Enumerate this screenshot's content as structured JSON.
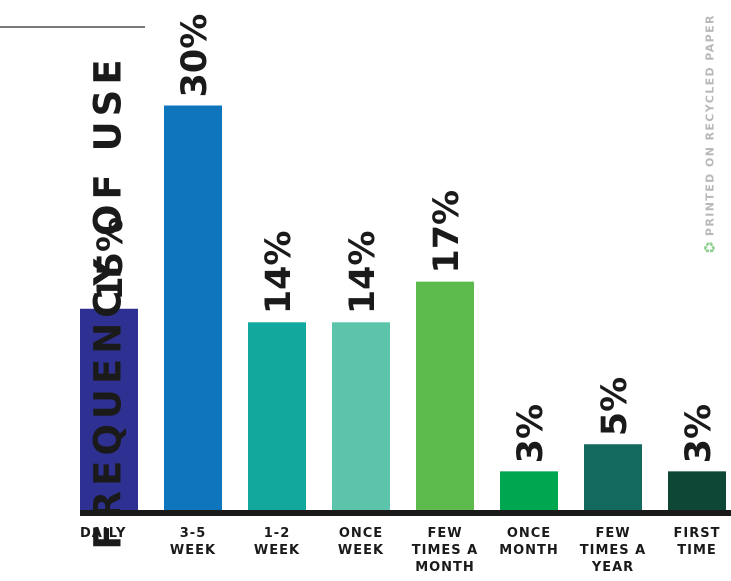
{
  "ylabel": "FREQUENCY OF USE",
  "side_note": {
    "text": "PRINTED ON RECYCLED PAPER",
    "icon": "recycle-icon",
    "icon_color": "#8fcf8f"
  },
  "chart_data": {
    "type": "bar",
    "title": "",
    "xlabel": "",
    "ylabel": "FREQUENCY OF USE",
    "ylim": [
      0,
      30
    ],
    "grid": false,
    "legend": "none",
    "categories": [
      [
        "DAILY"
      ],
      [
        "3-5",
        "WEEK"
      ],
      [
        "1-2",
        "WEEK"
      ],
      [
        "ONCE",
        "WEEK"
      ],
      [
        "FEW",
        "TIMES A",
        "MONTH"
      ],
      [
        "ONCE",
        "MONTH"
      ],
      [
        "FEW",
        "TIMES A",
        "YEAR"
      ],
      [
        "FIRST",
        "TIME"
      ]
    ],
    "values": [
      15,
      30,
      14,
      14,
      17,
      3,
      5,
      3
    ],
    "data_labels": [
      "15%",
      "30%",
      "14%",
      "14%",
      "17%",
      "3%",
      "5%",
      "3%"
    ],
    "colors": [
      "#2e3192",
      "#0f75bc",
      "#12a89d",
      "#5bc4ab",
      "#5dbb4e",
      "#00a650",
      "#13695d",
      "#0e4736"
    ],
    "baseline_color": "#1a1a1a"
  }
}
